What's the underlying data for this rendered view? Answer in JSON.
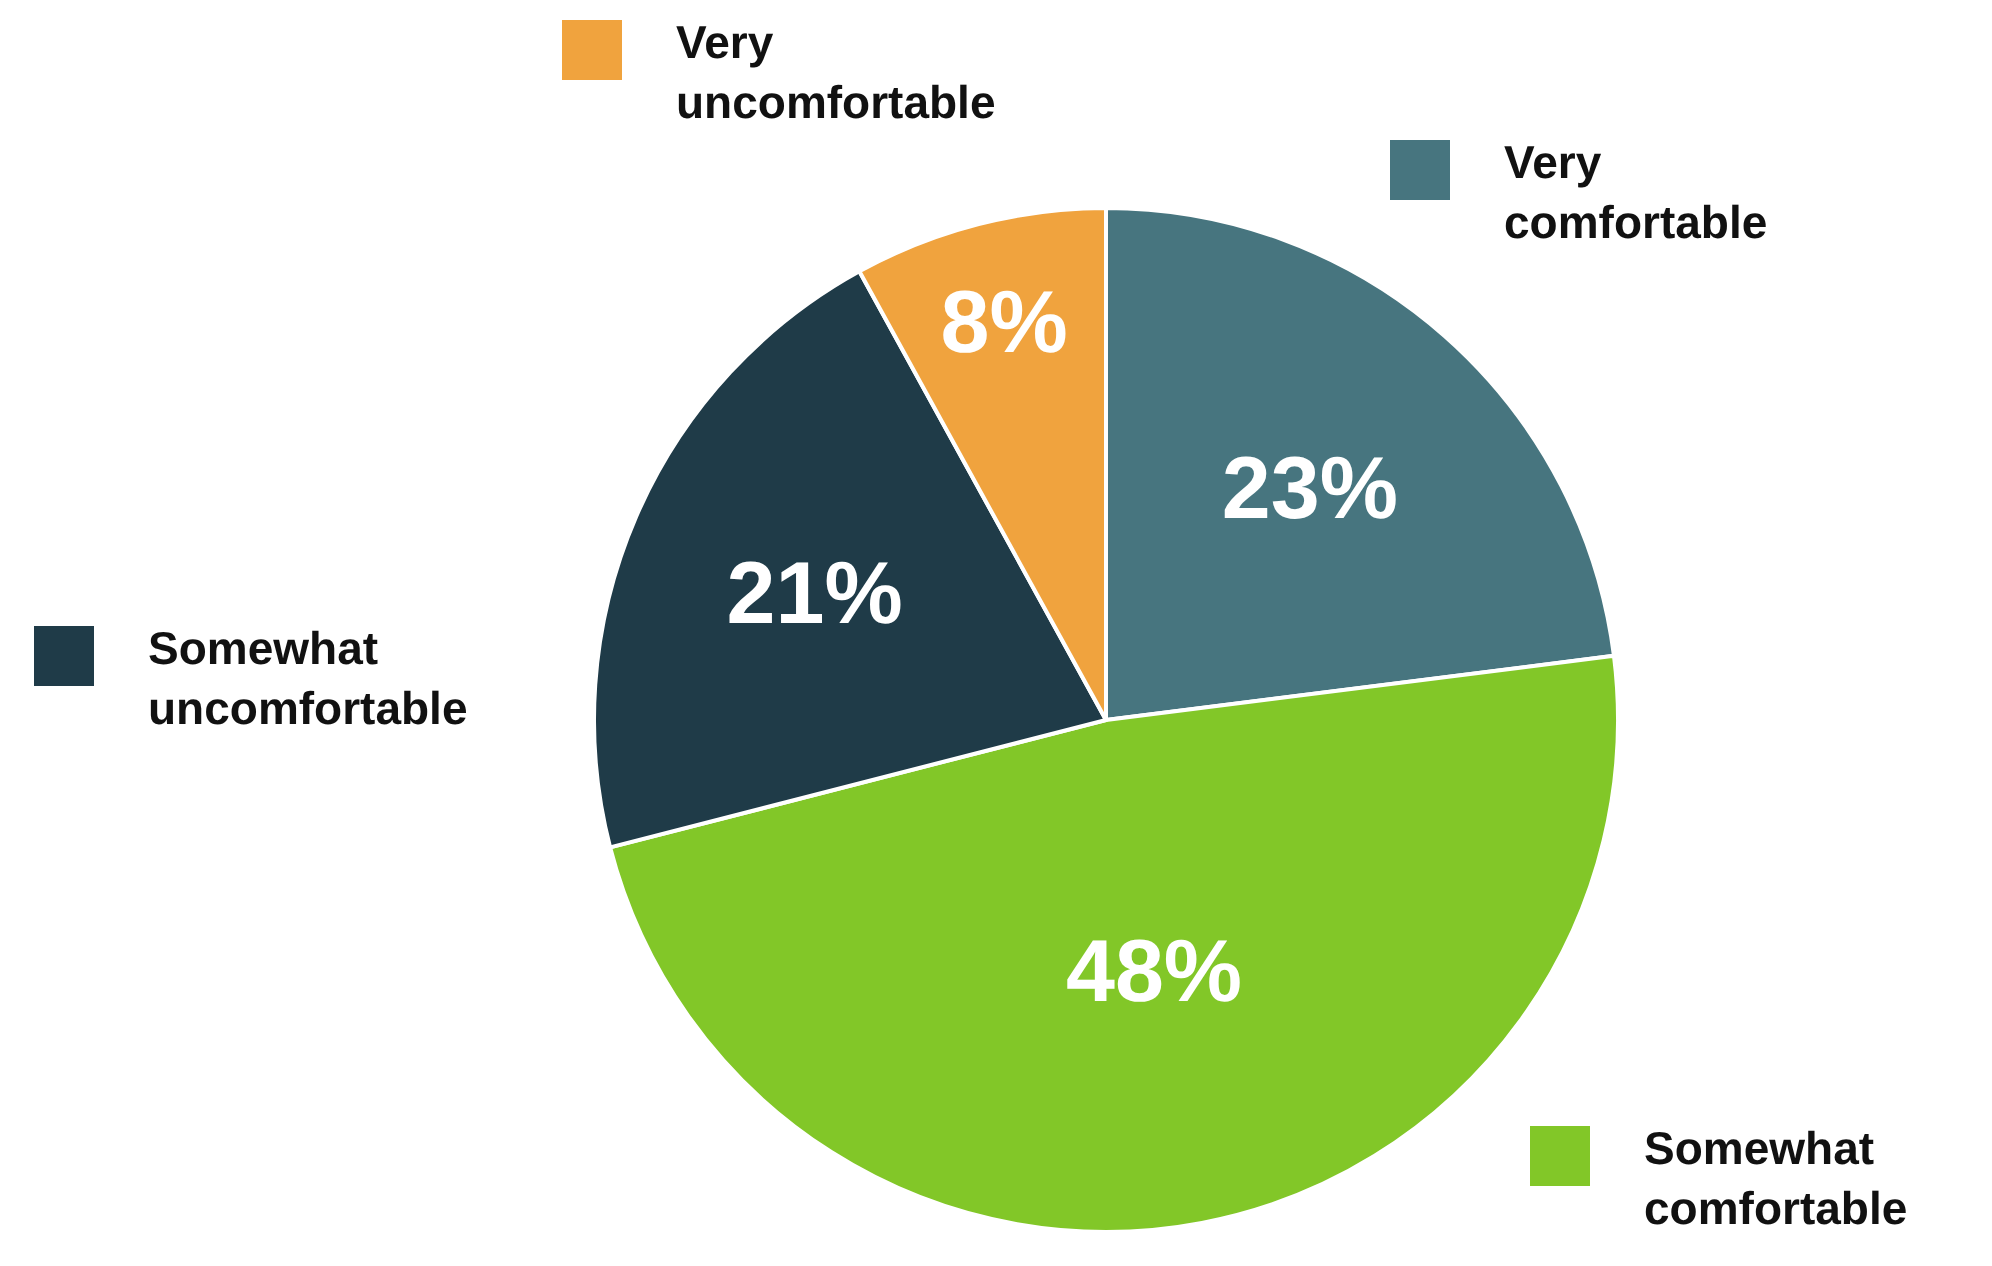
{
  "chart_data": {
    "type": "pie",
    "categories": [
      "Very comfortable",
      "Somewhat comfortable",
      "Somewhat uncomfortable",
      "Very uncomfortable"
    ],
    "values": [
      23,
      48,
      21,
      8
    ],
    "value_labels": [
      "23%",
      "48%",
      "21%",
      "8%"
    ],
    "colors": [
      "#47757f",
      "#82c728",
      "#1f3b48",
      "#f0a33e"
    ],
    "legend": "top left"
  }
}
